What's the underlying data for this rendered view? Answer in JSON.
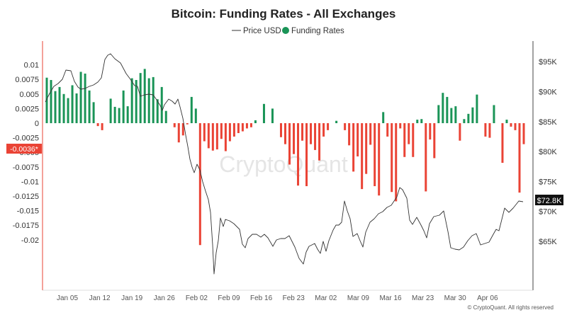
{
  "chart_data": {
    "type": "bar",
    "title": "Bitcoin: Funding Rates - All Exchanges",
    "legend": [
      {
        "name": "Price USD",
        "kind": "line",
        "color": "#333333"
      },
      {
        "name": "Funding Rates",
        "kind": "bar",
        "color": "#1a9457"
      }
    ],
    "legend_position": "top-center",
    "colors": {
      "positive": "#1a9457",
      "negative": "#ea4335",
      "price_line": "#333333",
      "axis_red": "#ea4335"
    },
    "y_left": {
      "ticks": [
        0.01,
        0.0075,
        0.005,
        0.0025,
        0,
        -0.0025,
        -0.005,
        -0.0075,
        -0.01,
        -0.0125,
        -0.015,
        -0.0175,
        -0.02
      ],
      "tick_labels": [
        "0.01",
        "0.0075",
        "0.005",
        "0.0025",
        "0",
        "-0.0025",
        "-0.005",
        "-0.0075",
        "-0.01",
        "-0.0125",
        "-0.015",
        "-0.0175",
        "-0.02"
      ],
      "range": [
        -0.0225,
        0.0115
      ]
    },
    "y_right": {
      "ticks": [
        95000,
        90000,
        85000,
        80000,
        75000,
        70000,
        65000
      ],
      "tick_labels": [
        "$95K",
        "$90K",
        "$85K",
        "$80K",
        "$75K",
        "$70K",
        "$65K"
      ],
      "range": [
        60500,
        98000
      ]
    },
    "x_ticks": [
      "Jan 05",
      "Jan 12",
      "Jan 19",
      "Jan 26",
      "Feb 02",
      "Feb 09",
      "Feb 16",
      "Feb 23",
      "Mar 02",
      "Mar 09",
      "Mar 16",
      "Mar 23",
      "Mar 30",
      "Apr 06"
    ],
    "current_funding_label": "-0.0036*",
    "current_price_label": "$72.8K",
    "grid": false,
    "funding_rates": [
      0.0078,
      0.0074,
      0.0055,
      0.0062,
      0.005,
      0.0043,
      0.0065,
      0.0051,
      0.0088,
      0.0085,
      0.0056,
      0.0036,
      -0.0005,
      -0.0012,
      0,
      0.0042,
      0.0028,
      0.0026,
      0.0056,
      0.0029,
      0.0077,
      0.0074,
      0.0086,
      0.0093,
      0.0077,
      0.0079,
      0.0041,
      0.0062,
      0.0021,
      0,
      -0.0007,
      -0.0033,
      -0.0021,
      -0.0002,
      0.0045,
      0.0025,
      -0.0209,
      -0.0031,
      -0.0043,
      -0.0047,
      -0.0045,
      -0.0027,
      -0.0048,
      -0.0031,
      -0.0023,
      -0.0017,
      -0.0014,
      -0.0009,
      -0.0007,
      0.0005,
      0,
      0.0033,
      0,
      0.0025,
      0,
      -0.0024,
      -0.0036,
      -0.0071,
      -0.0053,
      -0.0107,
      -0.003,
      -0.0108,
      -0.0036,
      -0.0046,
      -0.0064,
      -0.0023,
      -0.0012,
      0,
      0.0004,
      0,
      -0.0012,
      -0.0038,
      -0.0083,
      -0.0057,
      -0.0113,
      -0.0087,
      -0.0037,
      -0.0108,
      -0.0124,
      0.0019,
      -0.0023,
      -0.0118,
      -0.0134,
      -0.0009,
      -0.0058,
      -0.0036,
      -0.0058,
      0.0006,
      0.0007,
      -0.0117,
      -0.0028,
      -0.006,
      0.0031,
      0.0052,
      0.0045,
      0.0026,
      0.0029,
      -0.003,
      0.0007,
      0.0016,
      0.0027,
      0.0049,
      0,
      -0.0023,
      -0.0025,
      0.0031,
      0,
      -0.0068,
      0.0006,
      -0.0006,
      -0.0012,
      -0.0119,
      -0.0036
    ]
  }
}
